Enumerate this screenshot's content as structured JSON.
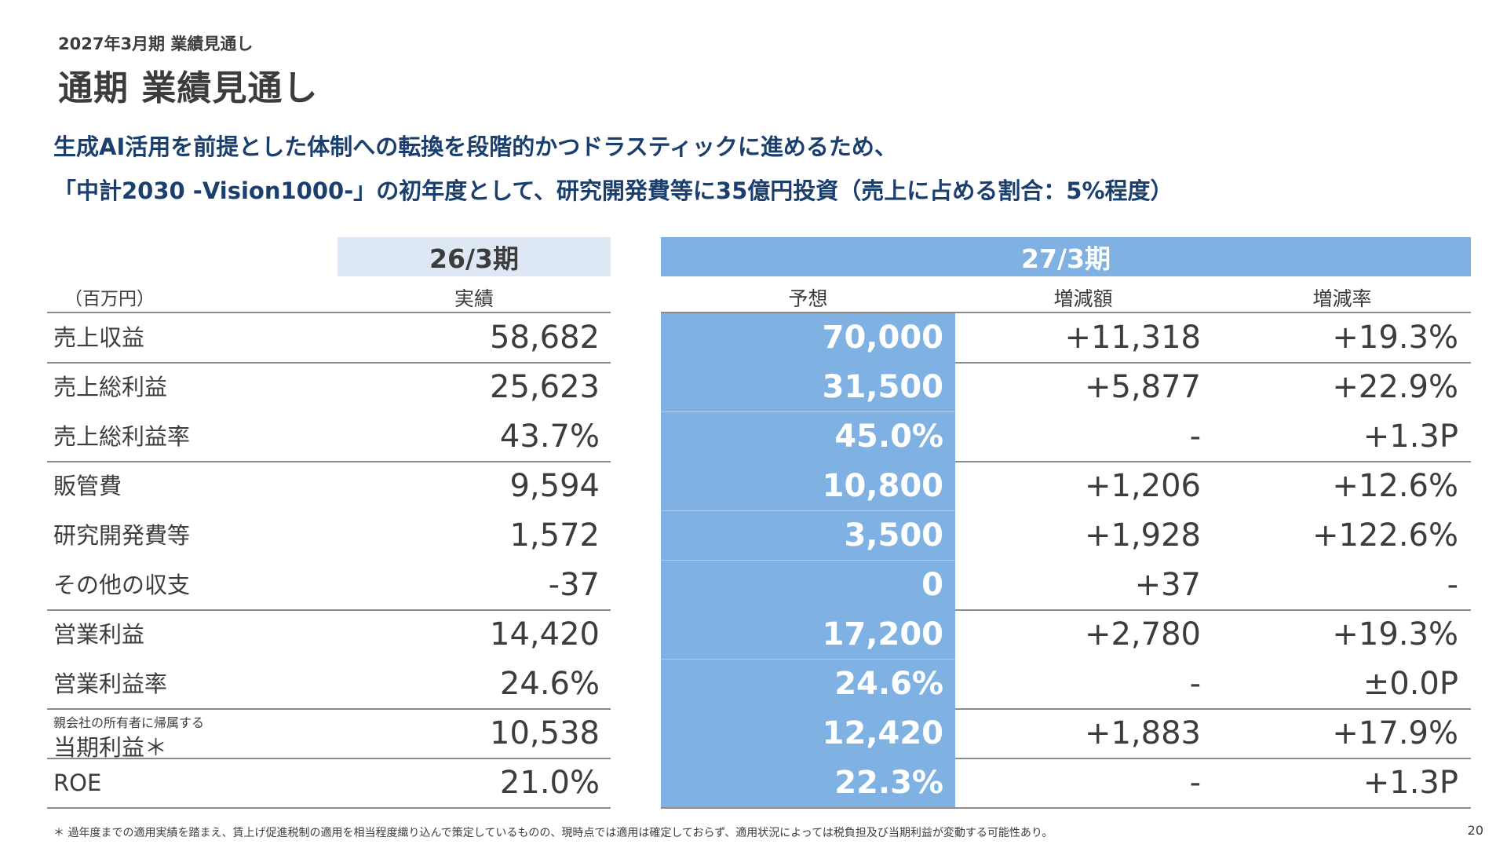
{
  "header": {
    "subtitle": "2027年3月期 業績見通し",
    "title": "通期 業績見通し"
  },
  "lead": {
    "line1": "生成AI活用を前提とした体制への転換を段階的かつドラスティックに進めるため、",
    "line2": "「中計2030 -Vision1000-」の初年度として、研究開発費等に35億円投資（売上に占める割合：5%程度）"
  },
  "table": {
    "unit": "（百万円）",
    "period_prev": "26/3期",
    "period_next": "27/3期",
    "col_actual": "実績",
    "col_forecast": "予想",
    "col_change": "増減額",
    "col_rate": "増減率",
    "rows": [
      {
        "label": "売上収益",
        "actual": "58,682",
        "forecast": "70,000",
        "change": "+11,318",
        "rate": "+19.3%"
      },
      {
        "label": "売上総利益",
        "actual": "25,623",
        "forecast": "31,500",
        "change": "+5,877",
        "rate": "+22.9%"
      },
      {
        "label": "売上総利益率",
        "actual": "43.7%",
        "forecast": "45.0%",
        "change": "-",
        "rate": "+1.3P"
      },
      {
        "label": "販管費",
        "actual": "9,594",
        "forecast": "10,800",
        "change": "+1,206",
        "rate": "+12.6%"
      },
      {
        "label": "研究開発費等",
        "actual": "1,572",
        "forecast": "3,500",
        "change": "+1,928",
        "rate": "+122.6%"
      },
      {
        "label": "その他の収支",
        "actual": "-37",
        "forecast": "0",
        "change": "+37",
        "rate": "-"
      },
      {
        "label": "営業利益",
        "actual": "14,420",
        "forecast": "17,200",
        "change": "+2,780",
        "rate": "+19.3%"
      },
      {
        "label": "営業利益率",
        "actual": "24.6%",
        "forecast": "24.6%",
        "change": "-",
        "rate": "±0.0P"
      },
      {
        "label_small": "親会社の所有者に帰属する",
        "label": "当期利益＊",
        "actual": "10,538",
        "forecast": "12,420",
        "change": "+1,883",
        "rate": "+17.9%"
      },
      {
        "label": "ROE",
        "actual": "21.0%",
        "forecast": "22.3%",
        "change": "-",
        "rate": "+1.3P"
      }
    ]
  },
  "footnote": "＊ 過年度までの適用実績を踏まえ、賃上げ促進税制の適用を相当程度織り込んで策定しているものの、現時点では適用は確定しておらず、適用状況によっては税負担及び当期利益が変動する可能性あり。",
  "page_number": "20",
  "colors": {
    "heading_navy": "#1a3f6e",
    "forecast_blue": "#7fb1e3",
    "prev_period_bg": "#dde8f4"
  }
}
